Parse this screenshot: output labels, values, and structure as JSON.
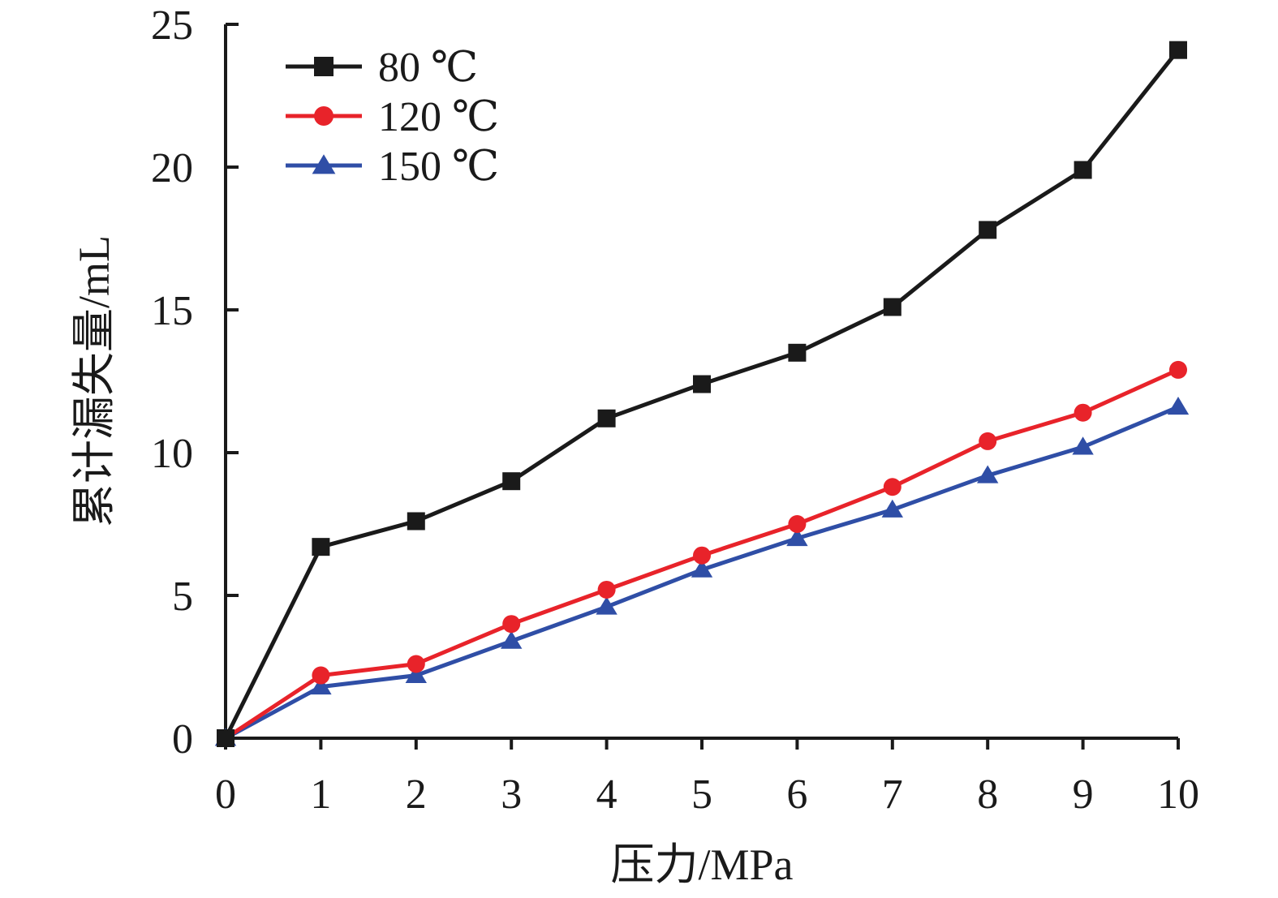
{
  "chart_data": {
    "type": "line",
    "xlabel": "压力/MPa",
    "ylabel": "累计漏失量/mL",
    "xlim": [
      0,
      10
    ],
    "ylim": [
      0,
      25
    ],
    "x_ticks": [
      0,
      1,
      2,
      3,
      4,
      5,
      6,
      7,
      8,
      9,
      10
    ],
    "y_ticks": [
      0,
      5,
      10,
      15,
      20,
      25
    ],
    "grid": false,
    "legend_position": "top-left",
    "x": [
      0,
      1,
      2,
      3,
      4,
      5,
      6,
      7,
      8,
      9,
      10
    ],
    "series": [
      {
        "name": "80 ℃",
        "color": "#1a1a1a",
        "marker": "square",
        "values": [
          0,
          6.7,
          7.6,
          9.0,
          11.2,
          12.4,
          13.5,
          15.1,
          17.8,
          19.9,
          24.1
        ]
      },
      {
        "name": "120 ℃",
        "color": "#e8232a",
        "marker": "circle",
        "values": [
          0,
          2.2,
          2.6,
          4.0,
          5.2,
          6.4,
          7.5,
          8.8,
          10.4,
          11.4,
          12.9
        ]
      },
      {
        "name": "150 ℃",
        "color": "#2f4ea6",
        "marker": "triangle",
        "values": [
          0,
          1.8,
          2.2,
          3.4,
          4.6,
          5.9,
          7.0,
          8.0,
          9.2,
          10.2,
          11.6
        ]
      }
    ]
  }
}
